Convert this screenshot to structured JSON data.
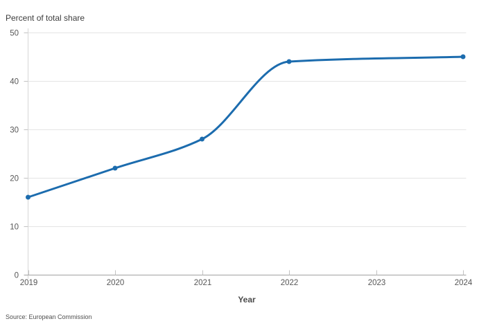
{
  "chart_data": {
    "type": "line",
    "title": "Percent of total share",
    "xlabel": "Year",
    "ylabel": "Percent of total share",
    "source": "Source: European Commission",
    "x": [
      2019,
      2020,
      2021,
      2022,
      2024
    ],
    "y": [
      16,
      22,
      28,
      44,
      45
    ],
    "x_ticks": [
      "2019",
      "2020",
      "2021",
      "2022",
      "2023",
      "2024"
    ],
    "x_tick_values": [
      2019,
      2020,
      2021,
      2022,
      2023,
      2024
    ],
    "y_ticks": [
      "0",
      "10",
      "20",
      "30",
      "40",
      "50"
    ],
    "y_tick_values": [
      0,
      10,
      20,
      30,
      40,
      50
    ],
    "xlim": [
      2019,
      2024
    ],
    "ylim": [
      0,
      50
    ],
    "grid": "horizontal",
    "legend": "none",
    "smooth": true,
    "marker": "circle",
    "colors": {
      "line": "#1c6cae",
      "grid": "#e4e4e4",
      "axis_x": "#a0a0a0",
      "axis_y": "#d6d6d6",
      "tick": "#c2c2c2",
      "tick_label": "#565656",
      "title_text": "#3c3c3c",
      "x_title_text": "#4a4a4a",
      "source_text": "#4f4f4f"
    }
  }
}
